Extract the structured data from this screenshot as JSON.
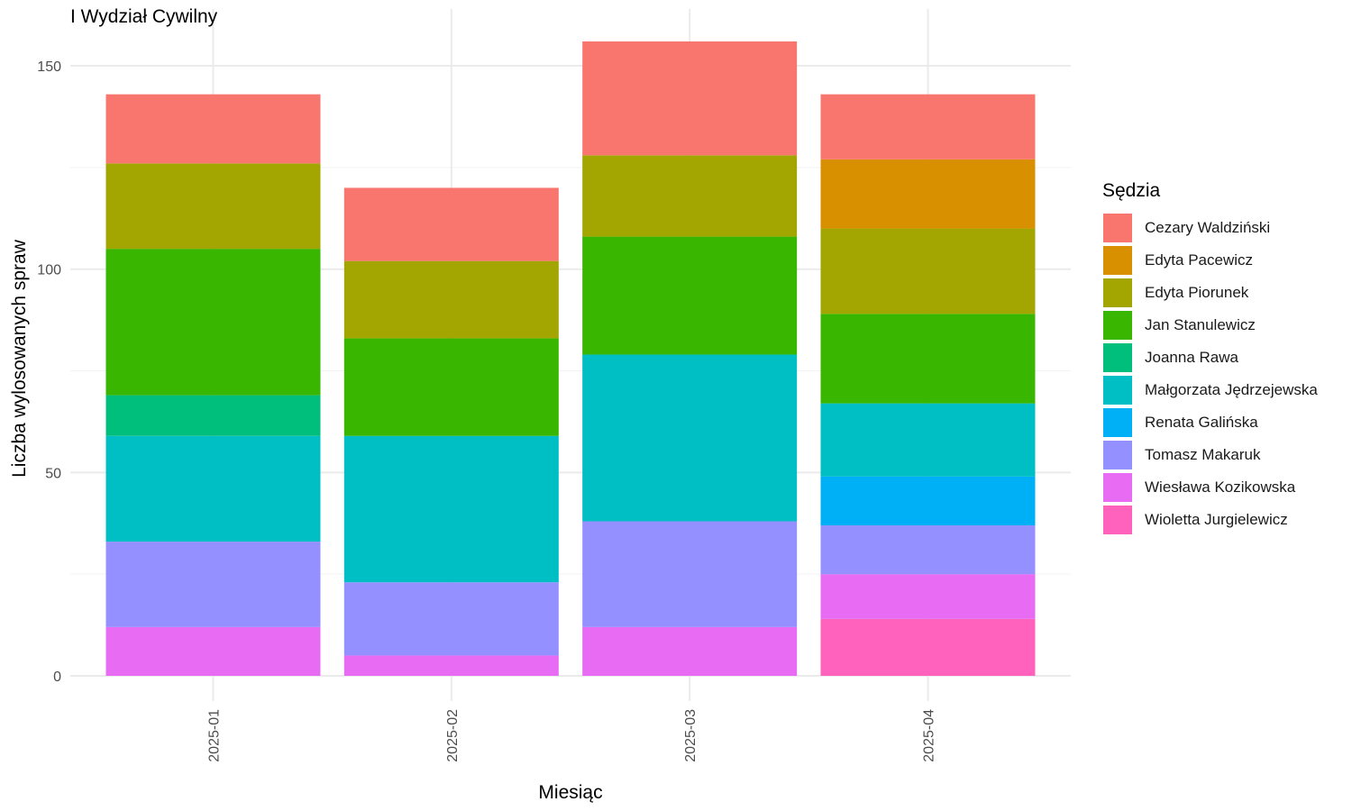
{
  "chart_data": {
    "type": "bar",
    "stacked": true,
    "title": "I Wydział Cywilny",
    "xlabel": "Miesiąc",
    "ylabel": "Liczba wylosowanych spraw",
    "legend_title": "Sędzia",
    "legend_position": "right",
    "grid": true,
    "ylim": [
      0,
      160
    ],
    "yticks": [
      0,
      50,
      100,
      150
    ],
    "categories": [
      "2025-01",
      "2025-02",
      "2025-03",
      "2025-04"
    ],
    "series": [
      {
        "name": "Cezary Waldziński",
        "color": "#F8766D",
        "values": [
          17,
          18,
          28,
          16
        ]
      },
      {
        "name": "Edyta Pacewicz",
        "color": "#D89000",
        "values": [
          0,
          0,
          0,
          17
        ]
      },
      {
        "name": "Edyta Piorunek",
        "color": "#A3A500",
        "values": [
          21,
          19,
          20,
          21
        ]
      },
      {
        "name": "Jan Stanulewicz",
        "color": "#39B600",
        "values": [
          36,
          24,
          29,
          22
        ]
      },
      {
        "name": "Joanna Rawa",
        "color": "#00BF7D",
        "values": [
          10,
          0,
          0,
          0
        ]
      },
      {
        "name": "Małgorzata Jędrzejewska",
        "color": "#00BFC4",
        "values": [
          26,
          36,
          41,
          18
        ]
      },
      {
        "name": "Renata Galińska",
        "color": "#00B0F6",
        "values": [
          0,
          0,
          0,
          12
        ]
      },
      {
        "name": "Tomasz Makaruk",
        "color": "#9590FF",
        "values": [
          21,
          18,
          26,
          12
        ]
      },
      {
        "name": "Wiesława Kozikowska",
        "color": "#E76BF3",
        "values": [
          12,
          5,
          12,
          11
        ]
      },
      {
        "name": "Wioletta Jurgielewicz",
        "color": "#FF62BC",
        "values": [
          0,
          0,
          0,
          14
        ]
      }
    ]
  }
}
